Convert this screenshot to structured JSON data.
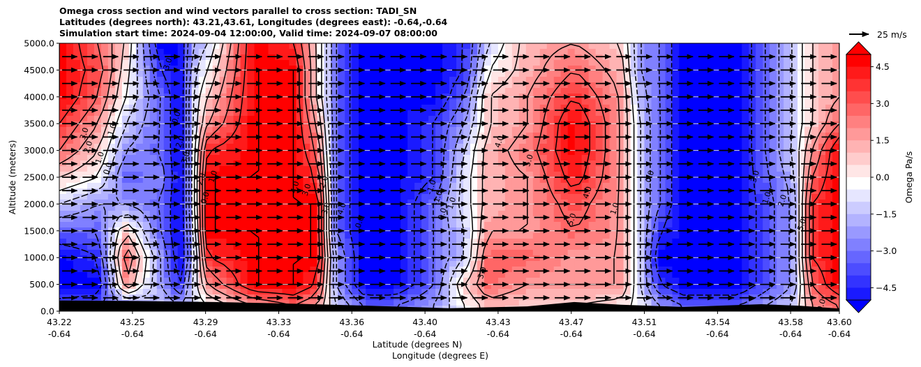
{
  "title_lines": [
    "Omega cross section and wind vectors parallel to cross section: TADI_SN",
    "Latitudes (degrees north): 43.21,43.61, Longitudes (degrees east): -0.64,-0.64",
    "Simulation start time: 2024-09-04 12:00:00, Valid time: 2024-09-07 08:00:00"
  ],
  "chart_data": {
    "type": "heatmap",
    "subtype": "filled-contour cross section with wind vectors",
    "ylabel": "Altitude (meters)",
    "xlabel_lines": [
      "Latitude (degrees N)",
      "Longitude (degrees E)"
    ],
    "ylim": [
      0,
      5000
    ],
    "y_ticks": [
      "0.0",
      "500.0",
      "1000.0",
      "1500.0",
      "2000.0",
      "2500.0",
      "3000.0",
      "3500.0",
      "4000.0",
      "4500.0",
      "5000.0"
    ],
    "y_tick_values": [
      0,
      500,
      1000,
      1500,
      2000,
      2500,
      3000,
      3500,
      4000,
      4500,
      5000
    ],
    "x_ticks": [
      {
        "lat": "43.22",
        "lon": "-0.64",
        "frac": 0.0
      },
      {
        "lat": "43.25",
        "lon": "-0.64",
        "frac": 0.0938
      },
      {
        "lat": "43.29",
        "lon": "-0.64",
        "frac": 0.1875
      },
      {
        "lat": "43.33",
        "lon": "-0.64",
        "frac": 0.2813
      },
      {
        "lat": "43.36",
        "lon": "-0.64",
        "frac": 0.375
      },
      {
        "lat": "43.40",
        "lon": "-0.64",
        "frac": 0.4688
      },
      {
        "lat": "43.43",
        "lon": "-0.64",
        "frac": 0.5625
      },
      {
        "lat": "43.47",
        "lon": "-0.64",
        "frac": 0.6563
      },
      {
        "lat": "43.51",
        "lon": "-0.64",
        "frac": 0.75
      },
      {
        "lat": "43.54",
        "lon": "-0.64",
        "frac": 0.8438
      },
      {
        "lat": "43.58",
        "lon": "-0.64",
        "frac": 0.9375
      },
      {
        "lat": "43.60",
        "lon": "-0.64",
        "frac": 1.0
      }
    ],
    "grid": "horizontal",
    "colorbar": {
      "label": "Omega Pa/s",
      "range": [
        -5,
        5
      ],
      "ticks": [
        "4.5",
        "3.0",
        "1.5",
        "0.0",
        "−1.5",
        "−3.0",
        "−4.5"
      ],
      "tick_values": [
        4.5,
        3.0,
        1.5,
        0.0,
        -1.5,
        -3.0,
        -4.5
      ],
      "extend": "both",
      "cmap": "bwr",
      "color_low": "#0000ff",
      "color_mid": "#ffffff",
      "color_high": "#ff0000"
    },
    "omega_columns": {
      "x": [
        0.0,
        0.05,
        0.085,
        0.13,
        0.155,
        0.17,
        0.19,
        0.25,
        0.3,
        0.33,
        0.355,
        0.39,
        0.43,
        0.48,
        0.52,
        0.55,
        0.6,
        0.66,
        0.72,
        0.745,
        0.77,
        0.8,
        0.87,
        0.94,
        0.965,
        1.0
      ],
      "profiles": [
        {
          "alt": [
            100,
            500,
            1000,
            1500,
            2000,
            2500,
            3000,
            3500,
            4000,
            4500,
            5000
          ],
          "rows": [
            [
              -3.5,
              -5,
              -5,
              -3,
              -1,
              1,
              3,
              4,
              5,
              5,
              5
            ],
            [
              -3,
              -5,
              -4,
              -3,
              -2,
              0,
              1,
              2,
              3,
              3.5,
              3
            ],
            [
              -2.5,
              2,
              3,
              1,
              -2,
              -3,
              -2,
              -1,
              0,
              0.5,
              1
            ],
            [
              -1,
              -2,
              -2,
              -3,
              -3,
              -2.5,
              -3,
              -3,
              -3,
              -4,
              -5
            ],
            [
              -2,
              -4,
              -5,
              -5,
              -5,
              -5,
              -5,
              -5,
              -5,
              -5,
              -5
            ],
            [
              -1,
              -1,
              -2,
              -1.5,
              -1,
              -1,
              -1,
              -1,
              -1,
              -1.5,
              -2
            ],
            [
              0,
              2,
              4,
              5,
              5,
              5,
              4,
              2,
              1,
              0,
              -1
            ],
            [
              2,
              5,
              5,
              5,
              5,
              5,
              5,
              5,
              5,
              5,
              5
            ],
            [
              3,
              5,
              5,
              5,
              5,
              5,
              5,
              5,
              5,
              5,
              4
            ],
            [
              2,
              4,
              5,
              5,
              5,
              4,
              3,
              2,
              1,
              1,
              1
            ],
            [
              -1,
              -2,
              -2,
              -3,
              -3,
              -3,
              -3,
              -3,
              -3,
              -3,
              -3
            ],
            [
              -3,
              -5,
              -5,
              -5,
              -5,
              -5,
              -5,
              -5,
              -5,
              -5,
              -5
            ],
            [
              -3,
              -5,
              -5,
              -5,
              -5,
              -5,
              -5,
              -5,
              -5,
              -5,
              -5
            ],
            [
              -2,
              -3,
              -3,
              -3,
              -3,
              -4,
              -4,
              -4,
              -5,
              -5,
              -5
            ],
            [
              0,
              1,
              -1,
              -1,
              -0.5,
              -0.5,
              -1,
              -2,
              -3,
              -4,
              -4
            ],
            [
              1.5,
              3,
              3,
              2,
              1.5,
              1.5,
              1.5,
              1,
              1,
              0,
              -1
            ],
            [
              1,
              2,
              3,
              2,
              2,
              2,
              2.5,
              2,
              2,
              1.5,
              1.5
            ],
            [
              1,
              2,
              2,
              3,
              3.5,
              4.5,
              5,
              5,
              4,
              3,
              2
            ],
            [
              0.5,
              2,
              2,
              2,
              2,
              2,
              2,
              2,
              2,
              1.5,
              1
            ],
            [
              -0.5,
              -1,
              -1,
              -1,
              -1,
              -1,
              -1,
              -1,
              -1.5,
              -2,
              -2
            ],
            [
              -2,
              -4,
              -5,
              -4,
              -3,
              -3,
              -3,
              -3,
              -3,
              -3,
              -3
            ],
            [
              -3,
              -5,
              -5,
              -5,
              -5,
              -5,
              -5,
              -5,
              -5,
              -5,
              -5
            ],
            [
              -3,
              -5,
              -5,
              -5,
              -5,
              -5,
              -5,
              -5,
              -5,
              -5,
              -5
            ],
            [
              -1,
              -2,
              -2,
              -2,
              -2,
              -1.5,
              -1,
              -1,
              -1,
              -1,
              -1
            ],
            [
              2,
              3,
              4,
              4,
              4,
              3,
              2,
              1,
              1,
              1,
              1
            ],
            [
              3,
              5,
              5,
              5,
              5,
              5,
              5,
              3,
              2,
              2,
              2
            ]
          ]
        }
      ]
    },
    "contour_labels": [
      "3.0",
      "2.0",
      "1.0",
      "0.0",
      "-1.0",
      "3.0",
      "0.0",
      "2.0",
      "3.0",
      "2.0",
      "1.0",
      "0.0",
      "4.0",
      "3.0",
      "2.0",
      "3.0",
      "4.0",
      "0.0",
      "-1.0",
      "-1.0",
      "0.0",
      "1.0",
      "3.0",
      "4.0",
      "5.0",
      "5.0",
      "4.0",
      "1.0",
      "0.0",
      "3.0",
      "1.0",
      "2.0",
      "5.0",
      "0.0"
    ],
    "terrain_alt": [
      {
        "frac": 0.0,
        "alt": 200
      },
      {
        "frac": 0.1,
        "alt": 190
      },
      {
        "frac": 0.2,
        "alt": 170
      },
      {
        "frac": 0.3,
        "alt": 140
      },
      {
        "frac": 0.4,
        "alt": 100
      },
      {
        "frac": 0.5,
        "alt": 55
      },
      {
        "frac": 0.6,
        "alt": 90
      },
      {
        "frac": 0.66,
        "alt": 170
      },
      {
        "frac": 0.72,
        "alt": 120
      },
      {
        "frac": 0.8,
        "alt": 80
      },
      {
        "frac": 0.9,
        "alt": 130
      },
      {
        "frac": 0.95,
        "alt": 100
      },
      {
        "frac": 1.0,
        "alt": 50
      }
    ],
    "wind_vectors": {
      "direction": "parallel to cross section, pointing toward increasing latitude",
      "rows_alt": [
        250,
        500,
        750,
        1000,
        1250,
        1500,
        1750,
        2000,
        2250,
        2500,
        2750,
        3000,
        3250,
        3500,
        3750,
        4000,
        4250,
        4500,
        4750
      ],
      "columns": 38,
      "reference": {
        "label": "25 m/s",
        "speed": 25
      },
      "typical_speed": 8
    }
  }
}
